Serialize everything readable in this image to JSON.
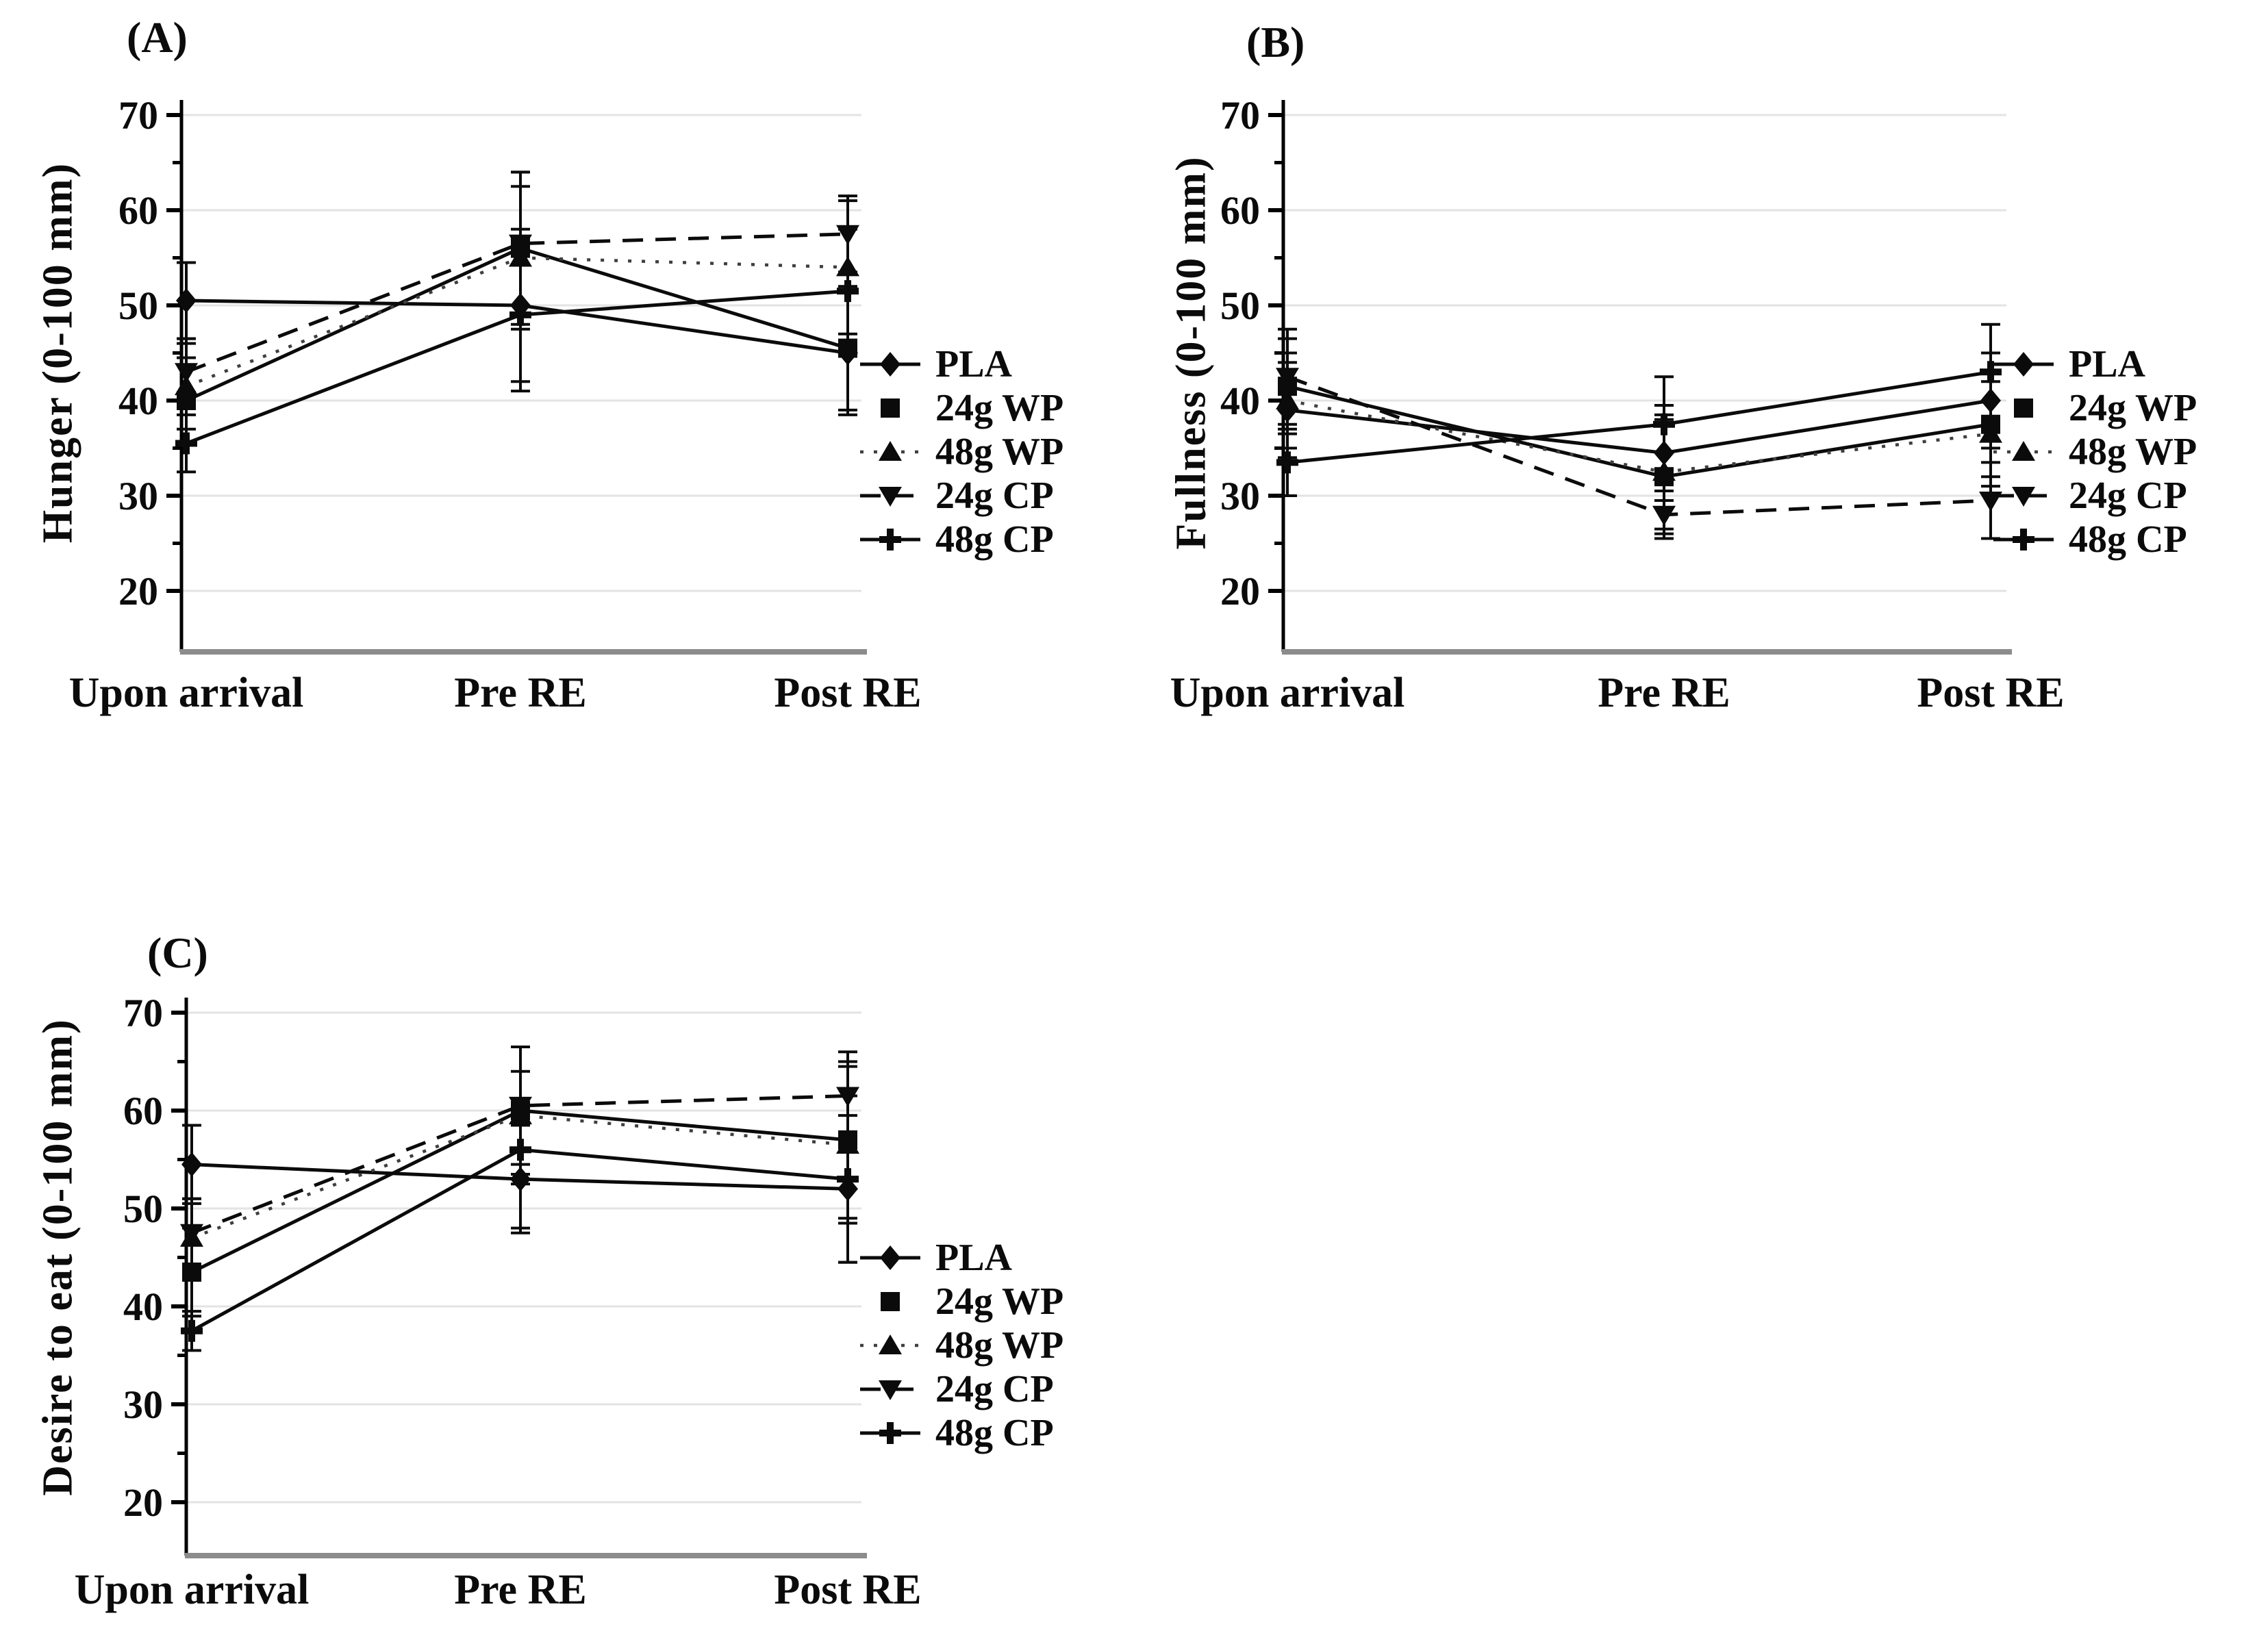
{
  "figure": {
    "colors": {
      "line": "#0b0b0b",
      "dotted_line": "#3f3f3f",
      "grid": "#e3e3e3",
      "axis": "#000000",
      "baseline": "#8c8c8c",
      "background": "#ffffff"
    },
    "legend_labels": [
      "PLA",
      "24g WP",
      "48g WP",
      "24g CP",
      "48g CP"
    ]
  },
  "chart_data": [
    {
      "type": "line",
      "panel_label": "(A)",
      "ylabel": "Hunger (0-100 mm)",
      "xlabel": "",
      "categories": [
        "Upon arrival",
        "Pre RE",
        "Post RE"
      ],
      "yticks": [
        70,
        60,
        50,
        40,
        30,
        20
      ],
      "ylim": [
        15,
        70
      ],
      "grid": true,
      "legend_position": "right",
      "series": [
        {
          "name": "PLA",
          "marker": "diamond",
          "line_style": "solid",
          "values": [
            50.5,
            50,
            45
          ],
          "errors": [
            4,
            8,
            6.5
          ]
        },
        {
          "name": "24g WP",
          "marker": "square",
          "line_style": "solid",
          "values": [
            40,
            56,
            45.5
          ],
          "errors": [
            4.5,
            8,
            6.5
          ]
        },
        {
          "name": "48g WP",
          "marker": "triangle-up",
          "line_style": "dotted",
          "values": [
            41.5,
            55,
            54
          ],
          "errors": [
            4.5,
            7.5,
            7
          ]
        },
        {
          "name": "24g CP",
          "marker": "triangle-down",
          "line_style": "dashed",
          "values": [
            43,
            56.5,
            57.5
          ],
          "errors": [
            3.5,
            7.5,
            4
          ]
        },
        {
          "name": "48g CP",
          "marker": "plus",
          "line_style": "solid",
          "values": [
            35.5,
            49,
            51.5
          ],
          "errors": [
            3,
            8,
            6.5
          ]
        }
      ]
    },
    {
      "type": "line",
      "panel_label": "(B)",
      "ylabel": "Fullness (0-100 mm)",
      "xlabel": "",
      "categories": [
        "Upon arrival",
        "Pre RE",
        "Post RE"
      ],
      "yticks": [
        70,
        60,
        50,
        40,
        30,
        20
      ],
      "ylim": [
        15,
        70
      ],
      "grid": true,
      "legend_position": "right",
      "series": [
        {
          "name": "PLA",
          "marker": "diamond",
          "line_style": "solid",
          "values": [
            39,
            34.5,
            40
          ],
          "errors": [
            5,
            5,
            5
          ]
        },
        {
          "name": "24g WP",
          "marker": "square",
          "line_style": "solid",
          "values": [
            41.5,
            32,
            37.5
          ],
          "errors": [
            5,
            6,
            5.5
          ]
        },
        {
          "name": "48g WP",
          "marker": "triangle-up",
          "line_style": "dotted",
          "values": [
            40,
            32.5,
            36.5
          ],
          "errors": [
            5,
            6,
            5.5
          ]
        },
        {
          "name": "24g CP",
          "marker": "triangle-down",
          "line_style": "dashed",
          "values": [
            42.5,
            28,
            29.5
          ],
          "errors": [
            5,
            2.5,
            4
          ]
        },
        {
          "name": "48g CP",
          "marker": "plus",
          "line_style": "solid",
          "values": [
            33.5,
            37.5,
            43
          ],
          "errors": [
            3.5,
            5,
            5
          ]
        }
      ]
    },
    {
      "type": "line",
      "panel_label": "(C)",
      "ylabel": "Desire to eat (0-100 mm)",
      "xlabel": "",
      "categories": [
        "Upon arrival",
        "Pre RE",
        "Post RE"
      ],
      "yticks": [
        70,
        60,
        50,
        40,
        30,
        20
      ],
      "ylim": [
        15,
        70
      ],
      "grid": true,
      "legend_position": "right",
      "series": [
        {
          "name": "PLA",
          "marker": "diamond",
          "line_style": "solid",
          "values": [
            54.5,
            53,
            52
          ],
          "errors": [
            4,
            5.5,
            7.5
          ]
        },
        {
          "name": "24g WP",
          "marker": "square",
          "line_style": "solid",
          "values": [
            43.5,
            60,
            57
          ],
          "errors": [
            4.5,
            6.5,
            8
          ]
        },
        {
          "name": "48g WP",
          "marker": "triangle-up",
          "line_style": "dotted",
          "values": [
            47,
            59.5,
            56.5
          ],
          "errors": [
            4,
            7,
            8
          ]
        },
        {
          "name": "24g CP",
          "marker": "triangle-down",
          "line_style": "dashed",
          "values": [
            47.5,
            60.5,
            61.5
          ],
          "errors": [
            3.5,
            6,
            4.5
          ]
        },
        {
          "name": "48g CP",
          "marker": "plus",
          "line_style": "solid",
          "values": [
            37.5,
            56,
            53
          ],
          "errors": [
            2,
            8,
            8.5
          ]
        }
      ]
    }
  ]
}
